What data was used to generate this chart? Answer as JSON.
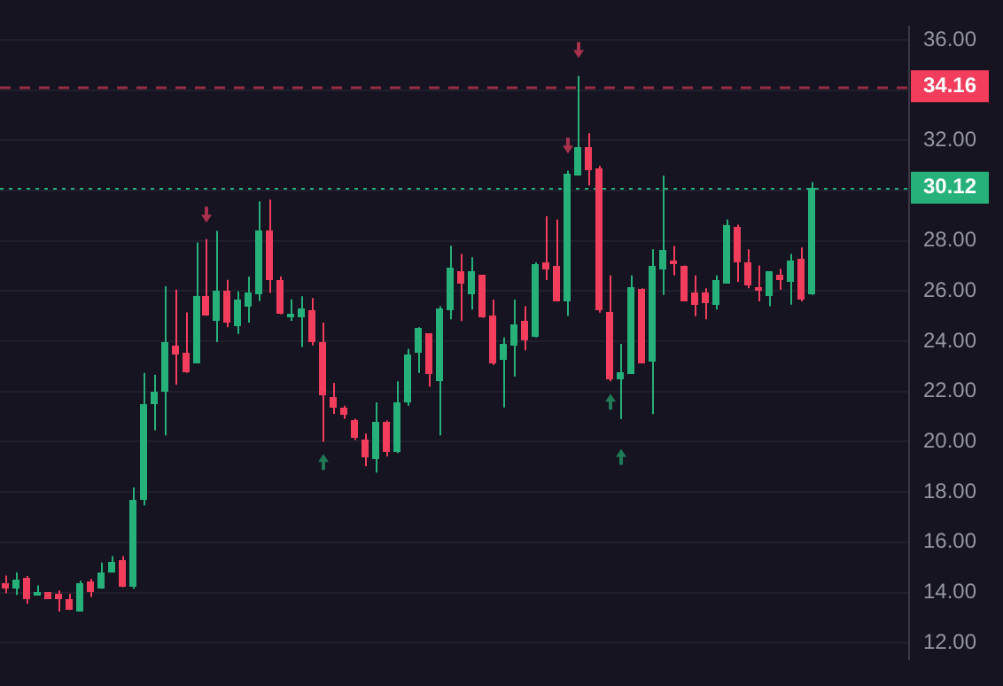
{
  "chart_data": {
    "type": "candlestick",
    "categories": [
      null,
      null,
      null,
      null,
      null,
      null,
      null,
      null,
      null,
      null,
      null,
      null,
      null,
      null,
      null,
      null,
      null,
      null,
      null,
      null,
      null,
      null,
      null,
      null,
      null,
      null,
      null,
      null,
      null,
      null,
      null,
      null,
      null,
      null,
      null,
      null,
      null,
      null,
      null,
      null,
      null,
      null,
      null,
      null,
      null,
      null,
      null,
      null,
      null,
      null,
      null,
      null,
      null,
      null,
      null,
      null,
      null,
      null,
      null,
      null,
      null,
      null,
      null,
      null,
      null,
      null,
      null,
      null,
      null,
      null,
      null,
      null,
      null,
      null,
      null,
      null,
      null
    ],
    "ohlc": [
      [
        14.36,
        14.67,
        13.97,
        14.15
      ],
      [
        14.15,
        14.8,
        13.9,
        14.54
      ],
      [
        14.6,
        14.65,
        13.55,
        13.76
      ],
      [
        13.9,
        14.28,
        13.9,
        14.03
      ],
      [
        14.0,
        14.0,
        13.76,
        13.76
      ],
      [
        13.95,
        14.08,
        13.24,
        13.76
      ],
      [
        13.76,
        13.95,
        13.3,
        13.3
      ],
      [
        13.24,
        14.47,
        13.24,
        14.34
      ],
      [
        14.41,
        14.54,
        13.82,
        14.02
      ],
      [
        14.15,
        15.19,
        14.15,
        14.8
      ],
      [
        14.8,
        15.45,
        14.8,
        15.25
      ],
      [
        15.32,
        15.45,
        14.21,
        14.21
      ],
      [
        14.21,
        18.18,
        14.15,
        17.66
      ],
      [
        17.66,
        22.74,
        17.47,
        21.5
      ],
      [
        21.5,
        22.67,
        20.46,
        21.96
      ],
      [
        22.02,
        26.19,
        20.26,
        23.97
      ],
      [
        23.84,
        26.06,
        22.28,
        23.45
      ],
      [
        23.52,
        25.15,
        22.74,
        22.8
      ],
      [
        23.13,
        27.94,
        23.13,
        25.8
      ],
      [
        25.8,
        28.07,
        25.02,
        25.02
      ],
      [
        24.82,
        28.4,
        23.97,
        25.99
      ],
      [
        25.99,
        26.45,
        24.56,
        24.75
      ],
      [
        24.62,
        25.99,
        24.3,
        25.67
      ],
      [
        25.4,
        26.58,
        24.75,
        25.93
      ],
      [
        25.86,
        29.57,
        25.6,
        28.4
      ],
      [
        28.4,
        29.64,
        25.93,
        26.45
      ],
      [
        26.45,
        26.58,
        25.08,
        25.08
      ],
      [
        24.95,
        25.67,
        24.82,
        25.08
      ],
      [
        24.95,
        25.8,
        23.78,
        25.28
      ],
      [
        25.21,
        25.73,
        23.84,
        23.97
      ],
      [
        23.97,
        24.75,
        20.0,
        21.83
      ],
      [
        21.76,
        22.35,
        21.11,
        21.37
      ],
      [
        21.37,
        21.44,
        20.92,
        21.11
      ],
      [
        20.85,
        20.92,
        20.07,
        20.13
      ],
      [
        20.07,
        20.33,
        19.03,
        19.35
      ],
      [
        19.29,
        21.57,
        18.77,
        20.79
      ],
      [
        20.79,
        20.85,
        19.42,
        19.61
      ],
      [
        19.61,
        22.41,
        19.55,
        21.57
      ],
      [
        21.57,
        23.71,
        21.44,
        23.45
      ],
      [
        23.52,
        24.56,
        22.74,
        24.5
      ],
      [
        24.3,
        24.3,
        22.2,
        22.67
      ],
      [
        22.41,
        25.4,
        20.26,
        25.28
      ],
      [
        25.21,
        27.81,
        24.88,
        26.97
      ],
      [
        26.76,
        27.48,
        24.81,
        26.31
      ],
      [
        25.85,
        27.35,
        25.27,
        26.76
      ],
      [
        26.63,
        26.63,
        24.94,
        24.94
      ],
      [
        25.0,
        25.66,
        23.06,
        23.12
      ],
      [
        23.25,
        24.16,
        21.37,
        23.9
      ],
      [
        23.84,
        25.66,
        22.6,
        24.68
      ],
      [
        24.81,
        25.4,
        23.64,
        24.03
      ],
      [
        24.16,
        27.15,
        24.16,
        27.09
      ],
      [
        27.15,
        28.98,
        26.44,
        26.89
      ],
      [
        27.02,
        28.85,
        25.59,
        25.59
      ],
      [
        25.59,
        30.8,
        25.01,
        30.67
      ],
      [
        30.6,
        34.57,
        30.6,
        31.7
      ],
      [
        31.7,
        32.29,
        30.21,
        30.8
      ],
      [
        30.86,
        30.99,
        25.14,
        25.27
      ],
      [
        25.2,
        26.63,
        22.41,
        22.47
      ],
      [
        22.47,
        23.9,
        20.91,
        22.8
      ],
      [
        22.73,
        26.63,
        22.73,
        26.18
      ],
      [
        26.11,
        26.11,
        23.12,
        23.12
      ],
      [
        23.19,
        27.67,
        21.1,
        27.02
      ],
      [
        26.83,
        30.6,
        25.85,
        27.67
      ],
      [
        27.22,
        27.8,
        26.63,
        27.09
      ],
      [
        27.02,
        27.02,
        25.59,
        25.59
      ],
      [
        25.92,
        26.63,
        25.0,
        25.46
      ],
      [
        25.98,
        26.11,
        24.88,
        25.53
      ],
      [
        25.46,
        26.63,
        25.27,
        26.44
      ],
      [
        26.31,
        28.85,
        26.31,
        28.65
      ],
      [
        28.59,
        28.65,
        26.37,
        27.15
      ],
      [
        27.15,
        27.67,
        26.11,
        26.24
      ],
      [
        26.18,
        27.02,
        25.59,
        26.05
      ],
      [
        25.79,
        26.76,
        25.4,
        26.76
      ],
      [
        26.63,
        26.89,
        26.05,
        26.44
      ],
      [
        26.37,
        27.48,
        25.46,
        27.22
      ],
      [
        27.28,
        27.74,
        25.59,
        25.66
      ],
      [
        25.85,
        30.34,
        25.85,
        30.12
      ]
    ],
    "colors": [
      "#f23d5c",
      "#26b07a",
      "#f23d5c",
      "#26b07a",
      "#f23d5c",
      "#f23d5c",
      "#f23d5c",
      "#26b07a",
      "#f23d5c",
      "#26b07a",
      "#26b07a",
      "#f23d5c",
      "#26b07a",
      "#26b07a",
      "#26b07a",
      "#26b07a",
      "#f23d5c",
      "#f23d5c",
      "#26b07a",
      "#f23d5c",
      "#26b07a",
      "#f23d5c",
      "#26b07a",
      "#26b07a",
      "#26b07a",
      "#f23d5c",
      "#f23d5c",
      "#26b07a",
      "#26b07a",
      "#f23d5c",
      "#f23d5c",
      "#f23d5c",
      "#f23d5c",
      "#f23d5c",
      "#f23d5c",
      "#26b07a",
      "#f23d5c",
      "#26b07a",
      "#26b07a",
      "#26b07a",
      "#f23d5c",
      "#26b07a",
      "#26b07a",
      "#f23d5c",
      "#26b07a",
      "#f23d5c",
      "#f23d5c",
      "#26b07a",
      "#26b07a",
      "#f23d5c",
      "#26b07a",
      "#f23d5c",
      "#f23d5c",
      "#26b07a",
      "#26b07a",
      "#f23d5c",
      "#f23d5c",
      "#f23d5c",
      "#26b07a",
      "#26b07a",
      "#f23d5c",
      "#26b07a",
      "#26b07a",
      "#f23d5c",
      "#f23d5c",
      "#f23d5c",
      "#f23d5c",
      "#26b07a",
      "#26b07a",
      "#f23d5c",
      "#f23d5c",
      "#f23d5c",
      "#26b07a",
      "#f23d5c",
      "#26b07a",
      "#f23d5c",
      "#26b07a"
    ],
    "ylim": [
      11.35,
      36.52
    ],
    "yticks": [
      {
        "value": 12,
        "label": "12.00"
      },
      {
        "value": 14,
        "label": "14.00"
      },
      {
        "value": 16,
        "label": "16.00"
      },
      {
        "value": 18,
        "label": "18.00"
      },
      {
        "value": 20,
        "label": "20.00"
      },
      {
        "value": 22,
        "label": "22.00"
      },
      {
        "value": 24,
        "label": "24.00"
      },
      {
        "value": 26,
        "label": "26.00"
      },
      {
        "value": 28,
        "label": "28.00"
      },
      {
        "value": 30,
        "label": null
      },
      {
        "value": 32,
        "label": "32.00"
      },
      {
        "value": 34,
        "label": null
      },
      {
        "value": 36,
        "label": "36.00"
      }
    ],
    "tick_labels": "y",
    "grid": "y",
    "ref_lines": [
      {
        "axis": "y",
        "value": 34.16,
        "label": "34.16",
        "color": "#f23d5c",
        "line_style": "dashed"
      },
      {
        "axis": "y",
        "value": 30.12,
        "label": "30.12",
        "color": "#26b07a",
        "line_style": "dotted"
      }
    ],
    "series": [
      {
        "type": "scatter",
        "color": "#a8314d",
        "values": [
          null,
          null,
          null,
          null,
          null,
          null,
          null,
          null,
          null,
          null,
          null,
          null,
          null,
          null,
          null,
          null,
          null,
          null,
          null,
          29.04,
          null,
          null,
          null,
          null,
          null,
          null,
          null,
          null,
          null,
          null,
          null,
          null,
          null,
          null,
          null,
          null,
          null,
          null,
          null,
          null,
          null,
          null,
          null,
          null,
          null,
          null,
          null,
          null,
          null,
          null,
          null,
          null,
          null,
          31.8,
          35.6,
          null,
          null,
          null,
          null,
          null,
          null,
          null,
          null,
          null,
          null,
          null,
          null,
          null,
          null,
          null,
          null,
          null,
          null,
          null,
          null,
          null,
          null
        ]
      },
      {
        "type": "scatter",
        "color": "#1f7a55",
        "values": [
          null,
          null,
          null,
          null,
          null,
          null,
          null,
          null,
          null,
          null,
          null,
          null,
          null,
          null,
          null,
          null,
          null,
          null,
          null,
          null,
          null,
          null,
          null,
          null,
          null,
          null,
          null,
          null,
          null,
          null,
          19.2,
          null,
          null,
          null,
          null,
          null,
          null,
          null,
          null,
          null,
          null,
          null,
          null,
          null,
          null,
          null,
          null,
          null,
          null,
          null,
          null,
          null,
          null,
          null,
          null,
          null,
          null,
          21.6,
          19.4,
          null,
          null,
          null,
          null,
          null,
          null,
          null,
          null,
          null,
          null,
          null,
          null,
          null,
          null,
          null,
          null,
          null,
          null
        ]
      }
    ]
  }
}
